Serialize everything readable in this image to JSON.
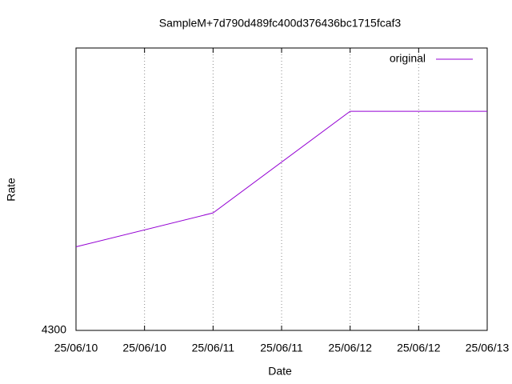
{
  "chart_data": {
    "type": "line",
    "title": "SampleM+7d790d489fc400d376436bc1715fcaf3",
    "x_label": "Date",
    "y_label": "Rate",
    "x": [
      "25/06/10",
      "25/06/11",
      "25/06/12",
      "25/06/13"
    ],
    "xticks": [
      "25/06/10",
      "25/06/10",
      "25/06/11",
      "25/06/11",
      "25/06/12",
      "25/06/12",
      "25/06/13"
    ],
    "series": [
      {
        "name": "original",
        "color": "#9400d3",
        "values": [
          4337,
          4352,
          4397,
          4397
        ]
      }
    ],
    "ylim": [
      4300,
      4425
    ],
    "yticks": [
      4300
    ],
    "grid": true,
    "legend": "top-right"
  }
}
